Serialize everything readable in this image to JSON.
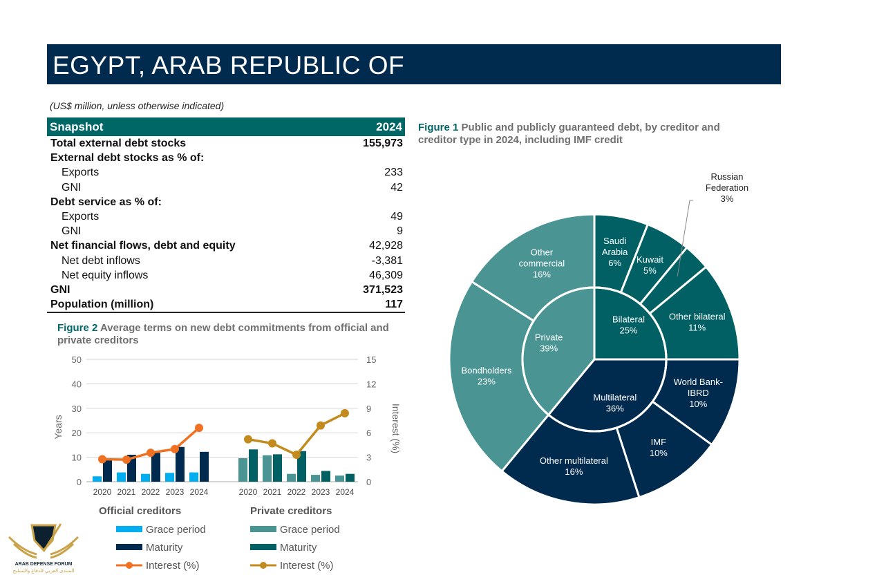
{
  "header": {
    "title": "EGYPT, ARAB REPUBLIC OF",
    "units": "(US$ million, unless otherwise indicated)"
  },
  "snapshot": {
    "title": "Snapshot",
    "year": "2024",
    "rows": [
      {
        "label": "Total external debt stocks",
        "value": "155,973",
        "style": "bold"
      },
      {
        "label": "External debt stocks as % of:",
        "value": "",
        "style": "bold"
      },
      {
        "label": "Exports",
        "value": "233",
        "style": "indent"
      },
      {
        "label": "GNI",
        "value": "42",
        "style": "indent"
      },
      {
        "label": "Debt service as % of:",
        "value": "",
        "style": "bold"
      },
      {
        "label": "Exports",
        "value": "49",
        "style": "indent"
      },
      {
        "label": "GNI",
        "value": "9",
        "style": "indent"
      },
      {
        "label": "Net financial flows, debt and equity",
        "value": "42,928",
        "style": "boldlabel"
      },
      {
        "label": "Net debt inflows",
        "value": "-3,381",
        "style": "indent"
      },
      {
        "label": "Net equity inflows",
        "value": "46,309",
        "style": "indent"
      },
      {
        "label": "GNI",
        "value": "371,523",
        "style": "bold"
      },
      {
        "label": "Population (million)",
        "value": "117",
        "style": "bold"
      }
    ]
  },
  "figure1": {
    "number": "Figure 1",
    "title": "Public and publicly guaranteed debt, by creditor and creditor type in 2024, including IMF credit"
  },
  "figure2": {
    "number": "Figure 2",
    "title": "Average terms on new debt commitments from official and private creditors"
  },
  "logo": {
    "text": "ARAB DEFENSE FORUM",
    "text_ar": "المنتدى العربي للدفاع والتسليح"
  },
  "chart_data": [
    {
      "type": "pie",
      "subtype": "sunburst",
      "inner": [
        {
          "name": "Bilateral",
          "value": 25,
          "color": "#006064"
        },
        {
          "name": "Multilateral",
          "value": 36,
          "color": "#002a4e"
        },
        {
          "name": "Private",
          "value": 39,
          "color": "#4a9494"
        }
      ],
      "outer": [
        {
          "name": "Saudi Arabia",
          "lines": [
            "Saudi",
            "Arabia"
          ],
          "value": 6,
          "parent": "Bilateral"
        },
        {
          "name": "Kuwait",
          "lines": [
            "Kuwait"
          ],
          "value": 5,
          "parent": "Bilateral"
        },
        {
          "name": "Russian Federation",
          "lines": [
            "Russian",
            "Federation"
          ],
          "value": 3,
          "parent": "Bilateral",
          "external": true
        },
        {
          "name": "Other bilateral",
          "lines": [
            "Other bilateral"
          ],
          "value": 11,
          "parent": "Bilateral"
        },
        {
          "name": "World Bank-IBRD",
          "lines": [
            "World Bank-",
            "IBRD"
          ],
          "value": 10,
          "parent": "Multilateral"
        },
        {
          "name": "IMF",
          "lines": [
            "IMF"
          ],
          "value": 10,
          "parent": "Multilateral"
        },
        {
          "name": "Other multilateral",
          "lines": [
            "Other multilateral"
          ],
          "value": 16,
          "parent": "Multilateral"
        },
        {
          "name": "Bondholders",
          "lines": [
            "Bondholders"
          ],
          "value": 23,
          "parent": "Private"
        },
        {
          "name": "Other commercial",
          "lines": [
            "Other",
            "commercial"
          ],
          "value": 16,
          "parent": "Private"
        }
      ]
    },
    {
      "type": "bar",
      "categories": [
        "2020",
        "2021",
        "2022",
        "2023",
        "2024"
      ],
      "ylabel": "Years",
      "y2label": "Interest (%)",
      "ylim": [
        0,
        50
      ],
      "yticks": [
        0,
        10,
        20,
        30,
        40,
        50
      ],
      "y2lim": [
        0,
        15
      ],
      "y2ticks": [
        0,
        3,
        6,
        9,
        12,
        15
      ],
      "grid": true,
      "groups": [
        {
          "name": "Official creditors",
          "series": [
            {
              "name": "Grace period",
              "kind": "bar",
              "axis": "left",
              "color": "#00aeef",
              "values": [
                2.2,
                3.8,
                3.2,
                3.6,
                3.8
              ]
            },
            {
              "name": "Maturity",
              "kind": "bar",
              "axis": "left",
              "color": "#002a4e",
              "values": [
                9.3,
                11.0,
                11.8,
                14.2,
                12.2
              ]
            },
            {
              "name": "Interest (%)",
              "kind": "line",
              "axis": "right",
              "color": "#f07122",
              "values": [
                2.75,
                2.7,
                3.55,
                4.0,
                6.6
              ]
            }
          ]
        },
        {
          "name": "Private creditors",
          "series": [
            {
              "name": "Grace period",
              "kind": "bar",
              "axis": "left",
              "color": "#4a9494",
              "values": [
                9.6,
                10.8,
                3.2,
                2.8,
                2.5
              ]
            },
            {
              "name": "Maturity",
              "kind": "bar",
              "axis": "left",
              "color": "#006064",
              "values": [
                13.2,
                11.2,
                12.5,
                4.4,
                3.2
              ]
            },
            {
              "name": "Interest (%)",
              "kind": "line",
              "axis": "right",
              "color": "#c38a1e",
              "values": [
                5.2,
                4.7,
                3.3,
                6.9,
                8.4
              ]
            }
          ]
        }
      ]
    }
  ]
}
